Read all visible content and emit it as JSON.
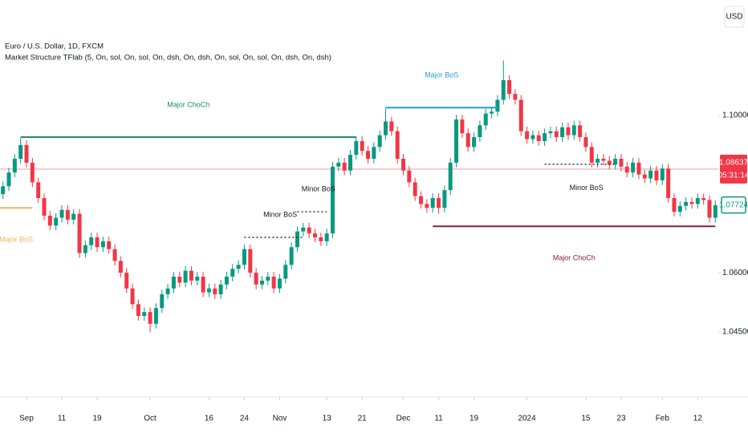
{
  "chart_data": {
    "type": "candlestick",
    "title": "Euro / U.S. Dollar, 1D, FXCM",
    "subtitle": "Market Structure TFlab (5, On, sol, On, sol, On, dsh, On, dsh, On, sol, On, sol, On, dsh, On, dsh)",
    "currency": "USD",
    "up_color": "#089981",
    "down_color": "#f23645",
    "xlim": [
      -0.5,
      121.5
    ],
    "ylim": [
      1.0284,
      1.1294
    ],
    "xticks": [
      {
        "value": 4,
        "label": "Sep"
      },
      {
        "value": 10,
        "label": "11"
      },
      {
        "value": 16,
        "label": "19"
      },
      {
        "value": 25,
        "label": "Oct"
      },
      {
        "value": 35,
        "label": "16"
      },
      {
        "value": 41,
        "label": "24"
      },
      {
        "value": 47,
        "label": "Nov"
      },
      {
        "value": 55,
        "label": "13"
      },
      {
        "value": 61,
        "label": "21"
      },
      {
        "value": 68,
        "label": "Dec"
      },
      {
        "value": 74,
        "label": "11"
      },
      {
        "value": 80,
        "label": "19"
      },
      {
        "value": 89,
        "label": "2024"
      },
      {
        "value": 99,
        "label": "15"
      },
      {
        "value": 105,
        "label": "23"
      },
      {
        "value": 112,
        "label": "Feb"
      },
      {
        "value": 118,
        "label": "12"
      }
    ],
    "yticks": [
      {
        "value": 1.1,
        "label": "1.10000"
      },
      {
        "value": 1.06,
        "label": "1.06000"
      },
      {
        "value": 1.045,
        "label": "1.04500"
      }
    ],
    "candles": [
      [
        1.08,
        1.0832,
        1.0788,
        1.082
      ],
      [
        1.082,
        1.0867,
        1.0808,
        1.0855
      ],
      [
        1.0855,
        1.0902,
        1.0843,
        1.089
      ],
      [
        1.089,
        1.0943,
        1.0878,
        1.0925
      ],
      [
        1.0925,
        1.0937,
        1.0868,
        1.088
      ],
      [
        1.088,
        1.0892,
        1.0818,
        1.083
      ],
      [
        1.083,
        1.0842,
        1.0778,
        1.079
      ],
      [
        1.079,
        1.0802,
        1.0733,
        1.0745
      ],
      [
        1.0745,
        1.0757,
        1.0708,
        1.072
      ],
      [
        1.072,
        1.0752,
        1.0708,
        1.074
      ],
      [
        1.074,
        1.0772,
        1.0728,
        1.076
      ],
      [
        1.076,
        1.0772,
        1.0723,
        1.0735
      ],
      [
        1.0735,
        1.0762,
        1.0723,
        1.075
      ],
      [
        1.075,
        1.0762,
        1.0638,
        1.065
      ],
      [
        1.065,
        1.0682,
        1.0638,
        1.067
      ],
      [
        1.067,
        1.0702,
        1.0658,
        1.069
      ],
      [
        1.069,
        1.0702,
        1.0653,
        1.0665
      ],
      [
        1.0665,
        1.0692,
        1.0653,
        1.068
      ],
      [
        1.068,
        1.0692,
        1.0648,
        1.066
      ],
      [
        1.066,
        1.0672,
        1.0618,
        1.063
      ],
      [
        1.063,
        1.0642,
        1.0588,
        1.06
      ],
      [
        1.06,
        1.0612,
        1.0548,
        1.056
      ],
      [
        1.056,
        1.0572,
        1.0508,
        1.052
      ],
      [
        1.052,
        1.0532,
        1.0478,
        1.049
      ],
      [
        1.049,
        1.0512,
        1.0478,
        1.05
      ],
      [
        1.05,
        1.0512,
        1.0448,
        1.047
      ],
      [
        1.047,
        1.0522,
        1.0458,
        1.051
      ],
      [
        1.051,
        1.0557,
        1.0498,
        1.0545
      ],
      [
        1.0545,
        1.0572,
        1.0533,
        1.056
      ],
      [
        1.056,
        1.0602,
        1.0548,
        1.059
      ],
      [
        1.059,
        1.0602,
        1.0563,
        1.0575
      ],
      [
        1.0575,
        1.0617,
        1.0563,
        1.0605
      ],
      [
        1.0605,
        1.0617,
        1.0568,
        1.058
      ],
      [
        1.058,
        1.0602,
        1.0568,
        1.059
      ],
      [
        1.059,
        1.0602,
        1.0538,
        1.055
      ],
      [
        1.055,
        1.0572,
        1.0538,
        1.056
      ],
      [
        1.056,
        1.0572,
        1.0533,
        1.0545
      ],
      [
        1.0545,
        1.0582,
        1.0533,
        1.057
      ],
      [
        1.057,
        1.0602,
        1.0558,
        1.059
      ],
      [
        1.059,
        1.0622,
        1.0578,
        1.061
      ],
      [
        1.061,
        1.0632,
        1.0598,
        1.062
      ],
      [
        1.062,
        1.0672,
        1.0608,
        1.066
      ],
      [
        1.066,
        1.0672,
        1.0588,
        1.06
      ],
      [
        1.06,
        1.0612,
        1.0558,
        1.057
      ],
      [
        1.057,
        1.0592,
        1.0558,
        1.058
      ],
      [
        1.058,
        1.0602,
        1.0568,
        1.059
      ],
      [
        1.059,
        1.0602,
        1.0548,
        1.056
      ],
      [
        1.056,
        1.0597,
        1.0548,
        1.0585
      ],
      [
        1.0585,
        1.0632,
        1.0573,
        1.062
      ],
      [
        1.062,
        1.0677,
        1.0608,
        1.0665
      ],
      [
        1.0665,
        1.0717,
        1.0653,
        1.0705
      ],
      [
        1.0705,
        1.0727,
        1.0693,
        1.0715
      ],
      [
        1.0715,
        1.0727,
        1.0688,
        1.07
      ],
      [
        1.07,
        1.0712,
        1.0678,
        1.069
      ],
      [
        1.069,
        1.0702,
        1.0668,
        1.068
      ],
      [
        1.068,
        1.0712,
        1.0668,
        1.07
      ],
      [
        1.07,
        1.0882,
        1.0688,
        1.087
      ],
      [
        1.087,
        1.0892,
        1.0858,
        1.088
      ],
      [
        1.088,
        1.0892,
        1.0848,
        1.086
      ],
      [
        1.086,
        1.0912,
        1.0848,
        1.09
      ],
      [
        1.09,
        1.0947,
        1.0888,
        1.0935
      ],
      [
        1.0935,
        1.0947,
        1.0898,
        1.091
      ],
      [
        1.091,
        1.0922,
        1.0878,
        1.089
      ],
      [
        1.089,
        1.0932,
        1.0878,
        1.092
      ],
      [
        1.092,
        1.0962,
        1.0908,
        1.095
      ],
      [
        1.095,
        1.1017,
        1.0938,
        1.0985
      ],
      [
        1.0985,
        1.0997,
        1.0948,
        1.096
      ],
      [
        1.096,
        1.0972,
        1.0878,
        1.089
      ],
      [
        1.089,
        1.0902,
        1.0848,
        1.086
      ],
      [
        1.086,
        1.0872,
        1.0818,
        1.083
      ],
      [
        1.083,
        1.0842,
        1.0783,
        1.0795
      ],
      [
        1.0795,
        1.0807,
        1.0763,
        1.0775
      ],
      [
        1.0775,
        1.0787,
        1.0753,
        1.0765
      ],
      [
        1.0765,
        1.0802,
        1.0753,
        1.079
      ],
      [
        1.079,
        1.0802,
        1.075,
        1.0765
      ],
      [
        1.0765,
        1.0822,
        1.0753,
        1.081
      ],
      [
        1.081,
        1.0892,
        1.0798,
        1.088
      ],
      [
        1.088,
        1.1002,
        1.0868,
        1.099
      ],
      [
        1.099,
        1.1002,
        1.0943,
        1.0955
      ],
      [
        1.0955,
        1.0967,
        1.0908,
        1.092
      ],
      [
        1.092,
        1.0957,
        1.0908,
        1.0945
      ],
      [
        1.0945,
        1.0987,
        1.0933,
        1.0975
      ],
      [
        1.0975,
        1.1017,
        1.0963,
        1.1005
      ],
      [
        1.1005,
        1.1022,
        1.0993,
        1.101
      ],
      [
        1.101,
        1.1052,
        1.0998,
        1.104
      ],
      [
        1.104,
        1.114,
        1.1028,
        1.109
      ],
      [
        1.109,
        1.1102,
        1.1043,
        1.1055
      ],
      [
        1.1055,
        1.1067,
        1.1028,
        1.104
      ],
      [
        1.104,
        1.1052,
        1.0948,
        1.096
      ],
      [
        1.096,
        1.0972,
        1.0928,
        1.094
      ],
      [
        1.094,
        1.0962,
        1.0928,
        1.095
      ],
      [
        1.095,
        1.0962,
        1.0923,
        1.0935
      ],
      [
        1.0935,
        1.0967,
        1.0923,
        1.0955
      ],
      [
        1.0955,
        1.0972,
        1.0943,
        1.096
      ],
      [
        1.096,
        1.0972,
        1.0933,
        1.0945
      ],
      [
        1.0945,
        1.0982,
        1.0933,
        1.097
      ],
      [
        1.097,
        1.0982,
        1.0938,
        1.095
      ],
      [
        1.095,
        1.0987,
        1.0938,
        1.0975
      ],
      [
        1.0975,
        1.0987,
        1.0933,
        1.0945
      ],
      [
        1.0945,
        1.0957,
        1.0908,
        1.092
      ],
      [
        1.092,
        1.0932,
        1.0868,
        1.088
      ],
      [
        1.088,
        1.0902,
        1.0868,
        1.089
      ],
      [
        1.089,
        1.0902,
        1.0873,
        1.0885
      ],
      [
        1.0885,
        1.0897,
        1.0863,
        1.0875
      ],
      [
        1.0875,
        1.0902,
        1.0863,
        1.089
      ],
      [
        1.089,
        1.0902,
        1.0858,
        1.087
      ],
      [
        1.087,
        1.0882,
        1.0843,
        1.0855
      ],
      [
        1.0855,
        1.0892,
        1.0843,
        1.088
      ],
      [
        1.088,
        1.0892,
        1.0838,
        1.085
      ],
      [
        1.085,
        1.0862,
        1.0828,
        1.084
      ],
      [
        1.084,
        1.0872,
        1.0828,
        1.086
      ],
      [
        1.086,
        1.0872,
        1.0823,
        1.0835
      ],
      [
        1.0835,
        1.0877,
        1.0823,
        1.0865
      ],
      [
        1.0865,
        1.0877,
        1.0778,
        1.079
      ],
      [
        1.079,
        1.0802,
        1.0743,
        1.0755
      ],
      [
        1.0755,
        1.0782,
        1.0743,
        1.077
      ],
      [
        1.077,
        1.0792,
        1.0758,
        1.078
      ],
      [
        1.078,
        1.0792,
        1.0763,
        1.0775
      ],
      [
        1.0775,
        1.0802,
        1.0763,
        1.079
      ],
      [
        1.079,
        1.0802,
        1.0773,
        1.0785
      ],
      [
        1.0785,
        1.0797,
        1.0728,
        1.074
      ],
      [
        1.074,
        1.0784,
        1.0728,
        1.0772
      ]
    ],
    "levels": [
      {
        "label": "Major ChoCh",
        "value": 1.0945,
        "start": 3,
        "end": 60,
        "color": "#1e8a6a",
        "style": "solid",
        "label_position": "above"
      },
      {
        "label": "Major BoS",
        "value": 1.102,
        "start": 65,
        "end": 84,
        "color": "#1e9fd0",
        "style": "solid",
        "label_position": "above"
      },
      {
        "label": "Major BoS",
        "value": 1.0765,
        "start": -0.5,
        "end": 5,
        "color": "#f2b35c",
        "style": "solid",
        "label_position": "below"
      },
      {
        "label": "Major ChoCh",
        "value": 1.0718,
        "start": 73,
        "end": 121,
        "color": "#8e1b3b",
        "style": "solid",
        "label_position": "below"
      },
      {
        "label": "Minor BoS",
        "value": 1.069,
        "start": 41,
        "end": 51,
        "color": "#333333",
        "style": "dotted",
        "label_position": "above"
      },
      {
        "label": "Minor BoS",
        "value": 1.0755,
        "start": 50,
        "end": 55,
        "color": "#333333",
        "style": "dotted",
        "label_position": "above"
      },
      {
        "label": "Minor BoS",
        "value": 1.0876,
        "start": 92,
        "end": 104,
        "color": "#333333",
        "style": "dotted",
        "label_position": "below"
      }
    ],
    "price_line": {
      "value": 1.08637,
      "countdown": "05:31:14",
      "color": "#f23645"
    },
    "current_price": {
      "value": 1.07724,
      "color": "#089981"
    }
  }
}
